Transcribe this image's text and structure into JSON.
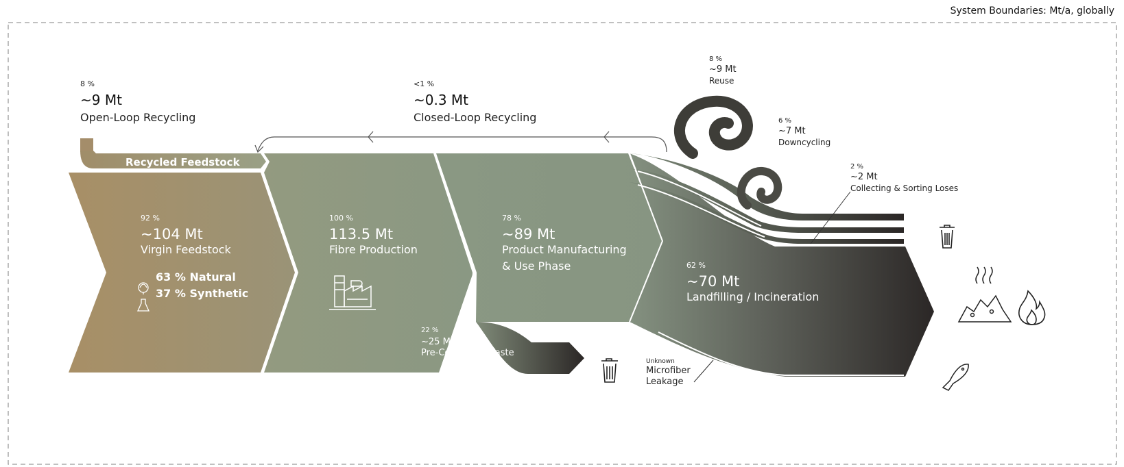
{
  "system_boundaries": "System Boundaries: Mt/a, globally",
  "open_loop": {
    "pct": "8 %",
    "value": "~9 Mt",
    "name": "Open-Loop Recycling"
  },
  "closed_loop": {
    "pct": "<1 %",
    "value": "~0.3 Mt",
    "name": "Closed-Loop Recycling"
  },
  "recycled_feedstock": "Recycled Feedstock",
  "virgin": {
    "pct": "92 %",
    "value": "~104 Mt",
    "name": "Virgin Feedstock",
    "natural": "63 % Natural",
    "synthetic": "37 % Synthetic"
  },
  "fibre": {
    "pct": "100 %",
    "value": "113.5 Mt",
    "name": "Fibre Production"
  },
  "product": {
    "pct": "78 %",
    "value": "~89 Mt",
    "name_line1": "Product Manufacturing",
    "name_line2": "& Use Phase"
  },
  "pre_consumer": {
    "pct": "22 %",
    "value": "~25 Mt",
    "name": "Pre-Consumer Waste"
  },
  "landfill": {
    "pct": "62 %",
    "value": "~70 Mt",
    "name": "Landfilling / Incineration"
  },
  "reuse": {
    "pct": "8 %",
    "value": "~9 Mt",
    "name": "Reuse"
  },
  "downcycling": {
    "pct": "6 %",
    "value": "~7 Mt",
    "name": "Downcycling"
  },
  "collecting": {
    "pct": "2 %",
    "value": "~2 Mt",
    "name": "Collecting & Sorting Loses"
  },
  "microfiber": {
    "line1": "Unknown",
    "line2": "Microfiber",
    "line3": "Leakage"
  },
  "colors": {
    "virgin": "#a89068",
    "fibre": "#8e9a80",
    "product": "#8a9883",
    "end": "#2b2726"
  },
  "icons": [
    "leaf-icon",
    "flask-icon",
    "factory-icon",
    "trash-icon",
    "trash-icon",
    "landfill-icon",
    "flame-icon",
    "fish-icon"
  ]
}
